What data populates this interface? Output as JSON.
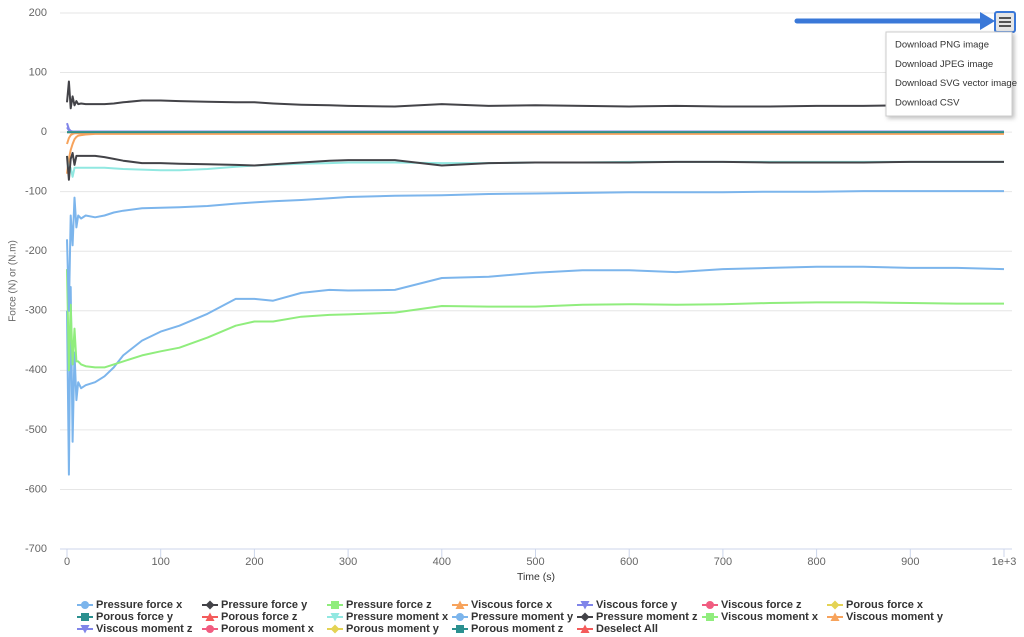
{
  "chart_data": {
    "type": "line",
    "x_label": "Time (s)",
    "y_label": "Force (N) or (N.m)",
    "x": [
      0,
      2,
      4,
      6,
      8,
      10,
      12,
      15,
      20,
      30,
      40,
      50,
      60,
      80,
      100,
      120,
      150,
      180,
      200,
      220,
      250,
      280,
      300,
      350,
      400,
      450,
      500,
      550,
      600,
      650,
      700,
      750,
      800,
      850,
      900,
      950,
      1000
    ],
    "xlim": [
      0,
      1000
    ],
    "xticks": [
      0,
      100,
      200,
      300,
      400,
      500,
      600,
      700,
      800,
      900,
      {
        "value": 1000,
        "label": "1e+3"
      }
    ],
    "ylim": [
      -700,
      200
    ],
    "yticks": [
      -700,
      -600,
      -500,
      -400,
      -300,
      -200,
      -100,
      0,
      100,
      200
    ],
    "grid": true,
    "series": [
      {
        "name": "Pressure force x",
        "color": "#7cb5ec",
        "values": [
          -300,
          -575,
          -260,
          -520,
          -370,
          -450,
          -420,
          -430,
          -425,
          -420,
          -410,
          -395,
          -375,
          -350,
          -335,
          -325,
          -305,
          -280,
          -280,
          -283,
          -270,
          -265,
          -266,
          -265,
          -245,
          -243,
          -236,
          -232,
          -232,
          -235,
          -230,
          -228,
          -226,
          -226,
          -228,
          -228,
          -230
        ]
      },
      {
        "name": "Pressure force y",
        "color": "#434348",
        "values": [
          50,
          85,
          40,
          60,
          45,
          52,
          47,
          48,
          47,
          47,
          47,
          48,
          50,
          53,
          53,
          52,
          51,
          50,
          50,
          48,
          46,
          45,
          44,
          43,
          47,
          44,
          45,
          44,
          43,
          44,
          43,
          43,
          44,
          44,
          45,
          44,
          44
        ]
      },
      {
        "name": "Pressure force z",
        "color": "#90ed7d",
        "values": [
          -230,
          -400,
          -290,
          -390,
          -330,
          -385,
          -385,
          -390,
          -393,
          -395,
          -395,
          -390,
          -385,
          -375,
          -368,
          -362,
          -345,
          -325,
          -318,
          -318,
          -310,
          -307,
          -306,
          -303,
          -292,
          -293,
          -293,
          -290,
          -289,
          -290,
          -289,
          -287,
          -286,
          -286,
          -287,
          -288,
          -288
        ]
      },
      {
        "name": "Viscous force x",
        "color": "#f7a35c",
        "values": [
          -70,
          -45,
          -30,
          -20,
          -12,
          -8,
          -6,
          -5,
          -4,
          -3,
          -3,
          -3,
          -3,
          -3,
          -3,
          -3,
          -3,
          -3,
          -3,
          -3,
          -3,
          -3,
          -3,
          -3,
          -3,
          -3,
          -3,
          -3,
          -3,
          -3,
          -3,
          -3,
          -3,
          -3,
          -3,
          -3,
          -3
        ]
      },
      {
        "name": "Viscous force y",
        "color": "#8085e9",
        "values": [
          15,
          5,
          2,
          1,
          1,
          1,
          1,
          1,
          1,
          1,
          1,
          1,
          1,
          1,
          1,
          1,
          1,
          1,
          1,
          1,
          1,
          1,
          1,
          1,
          1,
          1,
          1,
          1,
          1,
          1,
          1,
          1,
          1,
          1,
          1,
          1,
          1
        ]
      },
      {
        "name": "Viscous force z",
        "color": "#f15c80",
        "values": [
          0,
          0,
          0,
          0,
          0,
          0,
          0,
          0,
          0,
          0,
          0,
          0,
          0,
          0,
          0,
          0,
          0,
          0,
          0,
          0,
          0,
          0,
          0,
          0,
          0,
          0,
          0,
          0,
          0,
          0,
          0,
          0,
          0,
          0,
          0,
          0,
          0
        ]
      },
      {
        "name": "Porous force x",
        "color": "#e4d354",
        "values": [
          0,
          0,
          0,
          0,
          0,
          0,
          0,
          0,
          0,
          0,
          0,
          0,
          0,
          0,
          0,
          0,
          0,
          0,
          0,
          0,
          0,
          0,
          0,
          0,
          0,
          0,
          0,
          0,
          0,
          0,
          0,
          0,
          0,
          0,
          0,
          0,
          0
        ]
      },
      {
        "name": "Porous force y",
        "color": "#2b908f",
        "values": [
          0,
          0,
          0,
          0,
          0,
          0,
          0,
          0,
          0,
          0,
          0,
          0,
          0,
          0,
          0,
          0,
          0,
          0,
          0,
          0,
          0,
          0,
          0,
          0,
          0,
          0,
          0,
          0,
          0,
          0,
          0,
          0,
          0,
          0,
          0,
          0,
          0
        ]
      },
      {
        "name": "Porous force z",
        "color": "#f45b5b",
        "values": [
          0,
          0,
          0,
          0,
          0,
          0,
          0,
          0,
          0,
          0,
          0,
          0,
          0,
          0,
          0,
          0,
          0,
          0,
          0,
          0,
          0,
          0,
          0,
          0,
          0,
          0,
          0,
          0,
          0,
          0,
          0,
          0,
          0,
          0,
          0,
          0,
          0
        ]
      },
      {
        "name": "Pressure moment x",
        "color": "#91e8e1",
        "values": [
          -40,
          -70,
          -60,
          -75,
          -60,
          -60,
          -60,
          -60,
          -60,
          -60,
          -60,
          -61,
          -62,
          -63,
          -64,
          -64,
          -62,
          -58,
          -56,
          -55,
          -53,
          -52,
          -51,
          -51,
          -52,
          -52,
          -51,
          -51,
          -50,
          -50,
          -50,
          -50,
          -50,
          -50,
          -50,
          -50,
          -50
        ]
      },
      {
        "name": "Pressure moment y",
        "color": "#7cb5ec",
        "values": [
          -180,
          -300,
          -140,
          -190,
          -110,
          -160,
          -140,
          -145,
          -140,
          -143,
          -140,
          -135,
          -132,
          -128,
          -127,
          -126,
          -124,
          -120,
          -118,
          -116,
          -114,
          -111,
          -109,
          -107,
          -106,
          -104,
          -103,
          -102,
          -101,
          -101,
          -101,
          -100,
          -100,
          -99,
          -99,
          -99,
          -99
        ]
      },
      {
        "name": "Pressure moment z",
        "color": "#434348",
        "values": [
          -40,
          -80,
          -45,
          -35,
          -55,
          -40,
          -40,
          -40,
          -40,
          -40,
          -42,
          -45,
          -48,
          -52,
          -52,
          -53,
          -54,
          -55,
          -56,
          -54,
          -51,
          -48,
          -47,
          -47,
          -56,
          -52,
          -51,
          -51,
          -51,
          -50,
          -50,
          -51,
          -51,
          -51,
          -50,
          -50,
          -50
        ]
      },
      {
        "name": "Viscous moment x",
        "color": "#90ed7d",
        "values": [
          0,
          0,
          0,
          0,
          0,
          0,
          0,
          0,
          0,
          0,
          0,
          0,
          0,
          0,
          0,
          0,
          0,
          0,
          0,
          0,
          0,
          0,
          0,
          0,
          0,
          0,
          0,
          0,
          0,
          0,
          0,
          0,
          0,
          0,
          0,
          0,
          0
        ]
      },
      {
        "name": "Viscous moment y",
        "color": "#f7a35c",
        "values": [
          -20,
          -10,
          -5,
          -3,
          -2,
          -2,
          -2,
          -2,
          -2,
          -2,
          -2,
          -2,
          -2,
          -2,
          -2,
          -2,
          -2,
          -2,
          -2,
          -2,
          -2,
          -2,
          -2,
          -2,
          -2,
          -2,
          -2,
          -2,
          -2,
          -2,
          -2,
          -2,
          -2,
          -2,
          -2,
          -2,
          -2
        ]
      },
      {
        "name": "Viscous moment z",
        "color": "#8085e9",
        "values": [
          8,
          3,
          1,
          1,
          1,
          1,
          1,
          1,
          1,
          1,
          1,
          1,
          1,
          1,
          1,
          1,
          1,
          1,
          1,
          1,
          1,
          1,
          1,
          1,
          1,
          1,
          1,
          1,
          1,
          1,
          1,
          1,
          1,
          1,
          1,
          1,
          1
        ]
      },
      {
        "name": "Porous moment x",
        "color": "#f15c80",
        "values": [
          0,
          0,
          0,
          0,
          0,
          0,
          0,
          0,
          0,
          0,
          0,
          0,
          0,
          0,
          0,
          0,
          0,
          0,
          0,
          0,
          0,
          0,
          0,
          0,
          0,
          0,
          0,
          0,
          0,
          0,
          0,
          0,
          0,
          0,
          0,
          0,
          0
        ]
      },
      {
        "name": "Porous moment y",
        "color": "#e4d354",
        "values": [
          0,
          0,
          0,
          0,
          0,
          0,
          0,
          0,
          0,
          0,
          0,
          0,
          0,
          0,
          0,
          0,
          0,
          0,
          0,
          0,
          0,
          0,
          0,
          0,
          0,
          0,
          0,
          0,
          0,
          0,
          0,
          0,
          0,
          0,
          0,
          0,
          0
        ]
      },
      {
        "name": "Porous moment z",
        "color": "#2b908f",
        "values": [
          0,
          0,
          0,
          0,
          0,
          0,
          0,
          0,
          0,
          0,
          0,
          0,
          0,
          0,
          0,
          0,
          0,
          0,
          0,
          0,
          0,
          0,
          0,
          0,
          0,
          0,
          0,
          0,
          0,
          0,
          0,
          0,
          0,
          0,
          0,
          0,
          0
        ]
      }
    ],
    "deselect_all": {
      "label": "Deselect All",
      "color": "#f45b5b"
    },
    "menu_items": [
      "Download PNG image",
      "Download JPEG image",
      "Download SVG vector image",
      "Download CSV"
    ]
  }
}
